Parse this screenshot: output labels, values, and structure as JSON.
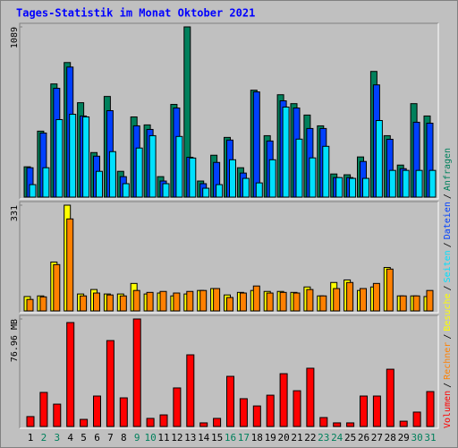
{
  "chart_data": {
    "type": "bar",
    "title": "Tages-Statistik im Monat Oktober 2021",
    "categories": [
      "1",
      "2",
      "3",
      "4",
      "5",
      "6",
      "7",
      "8",
      "9",
      "10",
      "11",
      "12",
      "13",
      "14",
      "15",
      "16",
      "17",
      "18",
      "19",
      "20",
      "21",
      "22",
      "23",
      "24",
      "25",
      "26",
      "27",
      "28",
      "29",
      "30",
      "31"
    ],
    "category_colors": [
      "#000000",
      "#00805c",
      "#00805c",
      "#000000",
      "#000000",
      "#000000",
      "#000000",
      "#000000",
      "#00805c",
      "#00805c",
      "#000000",
      "#000000",
      "#000000",
      "#000000",
      "#000000",
      "#00805c",
      "#00805c",
      "#000000",
      "#000000",
      "#000000",
      "#000000",
      "#000000",
      "#00805c",
      "#00805c",
      "#000000",
      "#000000",
      "#000000",
      "#000000",
      "#000000",
      "#00805c",
      "#00805c"
    ],
    "legend_separator": "/",
    "panels": [
      {
        "ylim": [
          0,
          1089
        ],
        "yticks": [
          1089
        ],
        "series": [
          {
            "name": "Anfragen",
            "color": "#00805c",
            "values": [
              194,
              422,
              724,
              861,
              604,
              285,
              644,
              165,
              513,
              462,
              131,
              593,
              1089,
              103,
              268,
              382,
              188,
              684,
              393,
              655,
              598,
              525,
              456,
              148,
              143,
              257,
              804,
              393,
              205,
              598,
              519
            ]
          },
          {
            "name": "Dateien",
            "color": "#0040ff",
            "values": [
              188,
              410,
              696,
              832,
              519,
              262,
              553,
              131,
              456,
              433,
              103,
              570,
              255,
              86,
              222,
              365,
              154,
              673,
              359,
              616,
              570,
              439,
              439,
              125,
              125,
              228,
              718,
              370,
              182,
              479,
              473
            ]
          },
          {
            "name": "Seiten",
            "color": "#00e0ff",
            "values": [
              80,
              188,
              496,
              530,
              513,
              165,
              291,
              86,
              314,
              393,
              86,
              388,
              250,
              57,
              80,
              239,
              120,
              91,
              239,
              576,
              371,
              251,
              325,
              125,
              120,
              120,
              490,
              171,
              171,
              171,
              171
            ]
          }
        ]
      },
      {
        "ylim": [
          0,
          331
        ],
        "yticks": [
          331
        ],
        "series": [
          {
            "name": "Besuche",
            "color": "#ffff00",
            "values": [
              45,
              47,
              153,
              331,
              53,
              67,
              53,
              53,
              86,
              53,
              56,
              47,
              53,
              64,
              70,
              50,
              58,
              64,
              61,
              61,
              58,
              75,
              47,
              89,
              97,
              64,
              75,
              136,
              47,
              47,
              45
            ]
          },
          {
            "name": "Rechner",
            "color": "#ff8000",
            "values": [
              36,
              44,
              145,
              288,
              47,
              56,
              50,
              47,
              64,
              58,
              61,
              56,
              61,
              64,
              70,
              42,
              56,
              78,
              56,
              58,
              56,
              67,
              47,
              70,
              89,
              70,
              86,
              131,
              47,
              47,
              64
            ]
          }
        ]
      },
      {
        "ylim": [
          0,
          76.96
        ],
        "yticks": [
          {
            "value": 76.96,
            "label": "76.96 MB"
          }
        ],
        "series": [
          {
            "name": "Volumen",
            "color": "#ff0000",
            "values": [
              7.1,
              24.4,
              16.0,
              74.4,
              5.1,
              21.8,
              61.5,
              20.5,
              76.96,
              5.8,
              8.3,
              27.6,
              51.3,
              2.6,
              5.8,
              35.9,
              19.9,
              14.7,
              22.4,
              37.8,
              25.6,
              41.7,
              6.4,
              2.6,
              2.6,
              21.8,
              21.8,
              41.0,
              3.8,
              10.3,
              25.0
            ]
          }
        ]
      }
    ]
  }
}
